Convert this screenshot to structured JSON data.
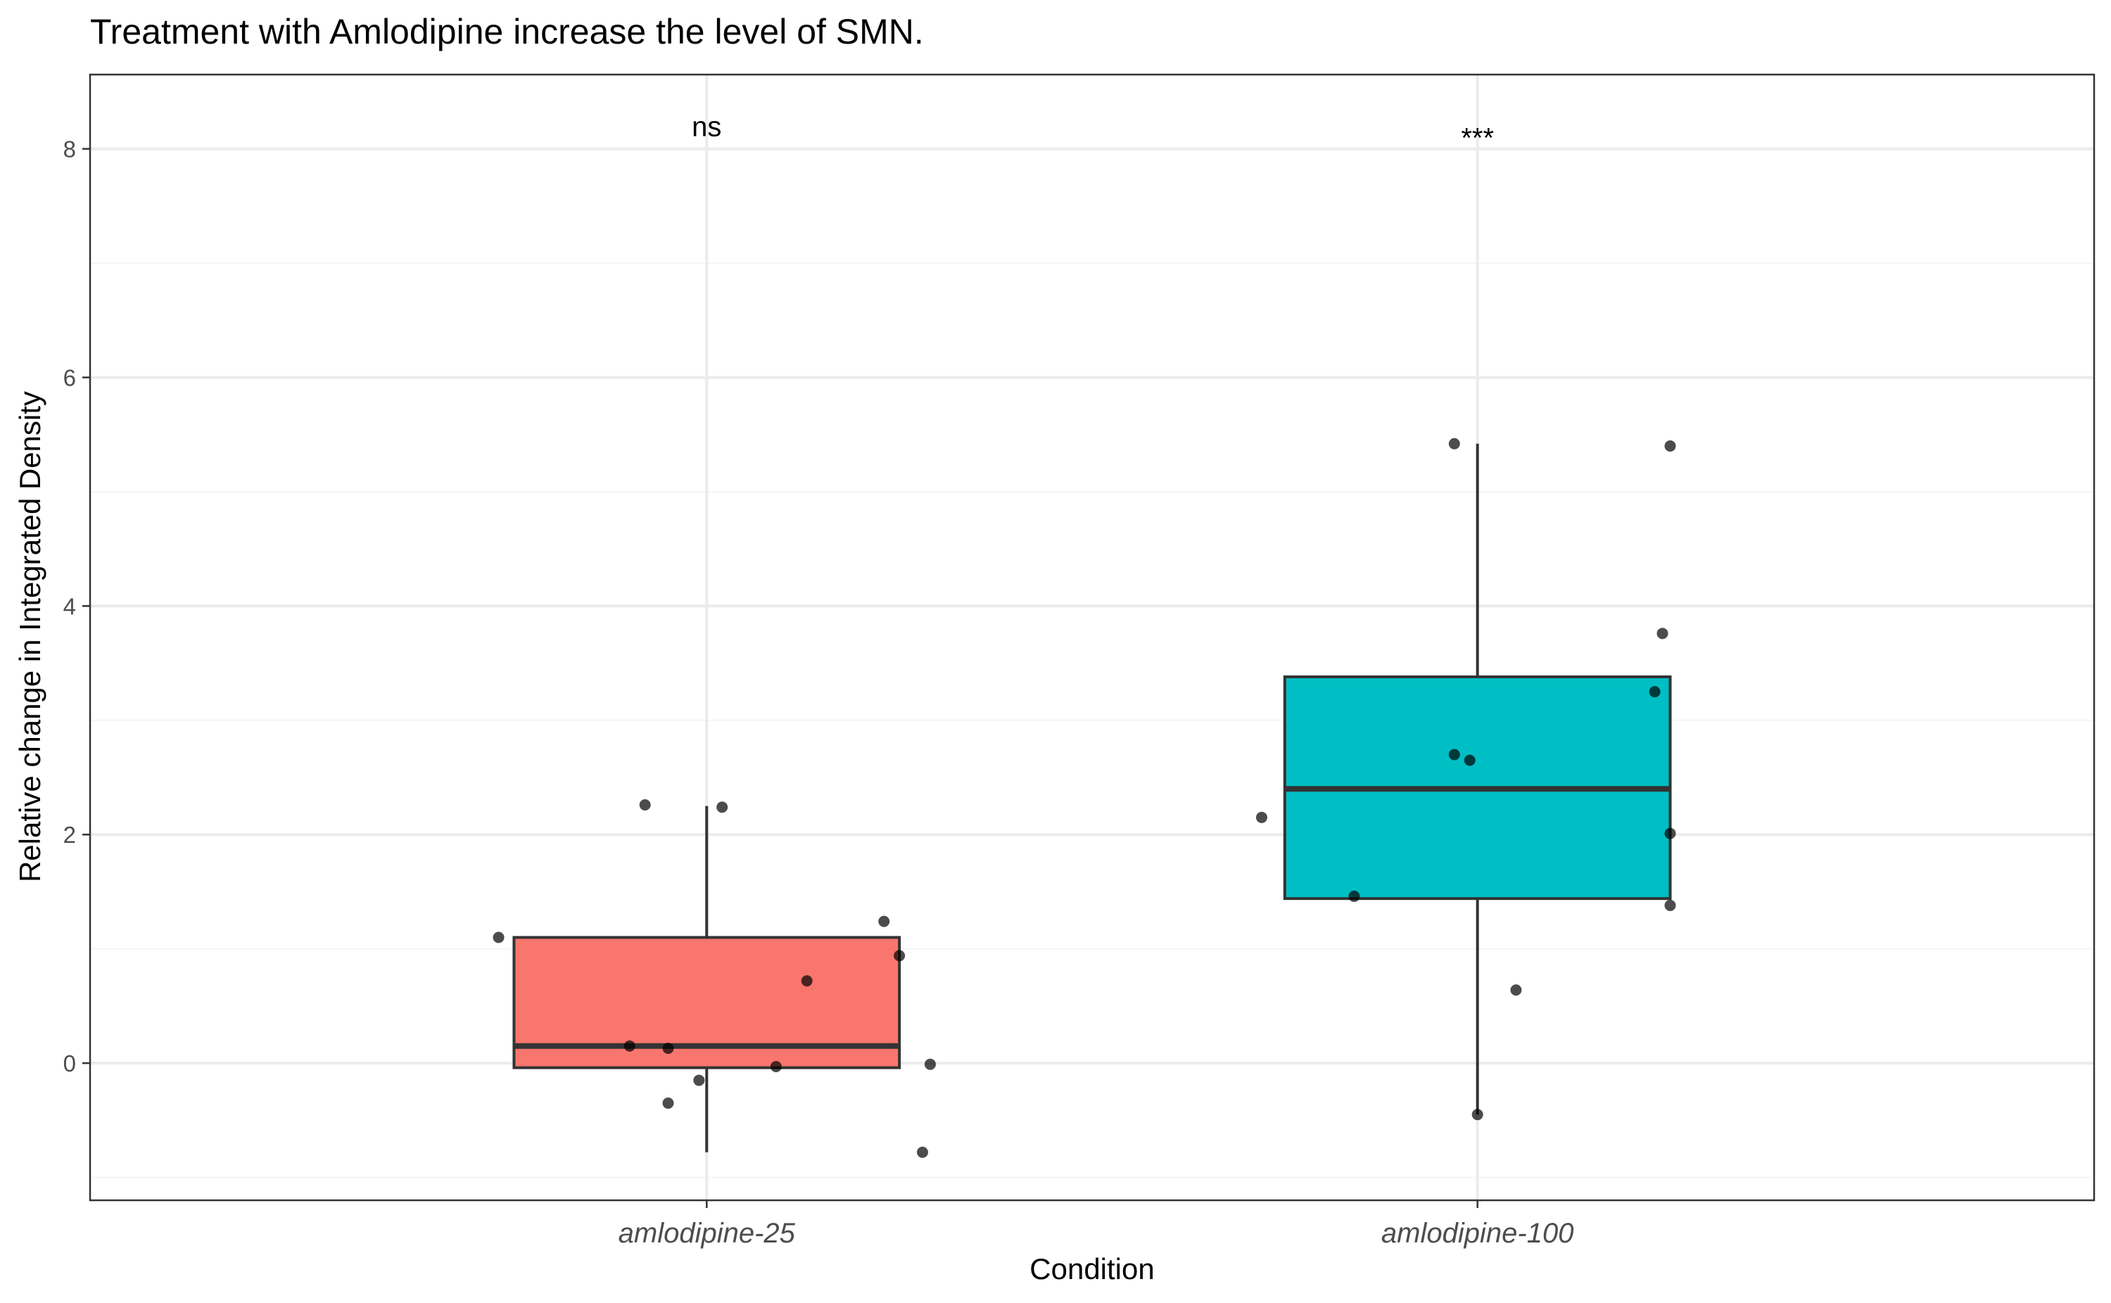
{
  "chart_data": {
    "type": "boxplot",
    "title": "Treatment with Amlodipine increase the level of SMN.",
    "xlabel": "Condition",
    "ylabel": "Relative change in Integrated Density",
    "ylim": [
      -1.2,
      8.65
    ],
    "yticks": [
      0,
      2,
      4,
      6,
      8
    ],
    "grid": true,
    "legend": "none",
    "categories": [
      "amlodipine-25",
      "amlodipine-100"
    ],
    "boxes": [
      {
        "category": "amlodipine-25",
        "color": "#F8766D",
        "lower_whisker": -0.78,
        "q1": -0.04,
        "median": 0.15,
        "q3": 1.1,
        "upper_whisker": 2.25,
        "significance": "ns",
        "points": [
          {
            "jitter": -0.27,
            "y": 1.1
          },
          {
            "jitter": -0.08,
            "y": 2.26
          },
          {
            "jitter": 0.02,
            "y": 2.24
          },
          {
            "jitter": 0.23,
            "y": 1.24
          },
          {
            "jitter": 0.25,
            "y": 0.94
          },
          {
            "jitter": 0.13,
            "y": 0.72
          },
          {
            "jitter": -0.1,
            "y": 0.15
          },
          {
            "jitter": -0.05,
            "y": 0.13
          },
          {
            "jitter": 0.09,
            "y": -0.03
          },
          {
            "jitter": 0.29,
            "y": -0.01
          },
          {
            "jitter": -0.01,
            "y": -0.15
          },
          {
            "jitter": -0.05,
            "y": -0.35
          },
          {
            "jitter": 0.28,
            "y": -0.78
          }
        ]
      },
      {
        "category": "amlodipine-100",
        "color": "#00BFC4",
        "lower_whisker": -0.45,
        "q1": 1.44,
        "median": 2.4,
        "q3": 3.38,
        "upper_whisker": 5.42,
        "significance": "***",
        "points": [
          {
            "jitter": -0.03,
            "y": 5.42
          },
          {
            "jitter": 0.25,
            "y": 5.4
          },
          {
            "jitter": 0.24,
            "y": 3.76
          },
          {
            "jitter": 0.23,
            "y": 3.25
          },
          {
            "jitter": -0.03,
            "y": 2.7
          },
          {
            "jitter": -0.01,
            "y": 2.65
          },
          {
            "jitter": -0.28,
            "y": 2.15
          },
          {
            "jitter": 0.25,
            "y": 2.01
          },
          {
            "jitter": -0.16,
            "y": 1.46
          },
          {
            "jitter": 0.25,
            "y": 1.38
          },
          {
            "jitter": 0.05,
            "y": 0.64
          },
          {
            "jitter": 0.0,
            "y": -0.45
          }
        ]
      }
    ]
  }
}
